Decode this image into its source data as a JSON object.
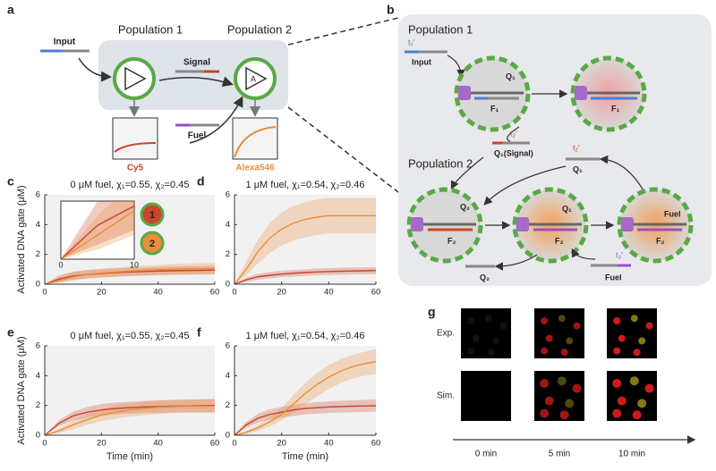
{
  "panel_a": {
    "label": "a",
    "population_1": "Population 1",
    "population_2": "Population 2",
    "input": "Input",
    "signal": "Signal",
    "fuel": "Fuel",
    "amplifier": "A",
    "readout_1": "Cy5",
    "readout_2": "Alexa546"
  },
  "panel_b": {
    "label": "b",
    "population_1": "Population 1",
    "input_toehold": "t₁′",
    "input": "Input",
    "q1_bound": "Q₁",
    "f1_left": "F₁",
    "f1_right": "F₁",
    "signal_toehold": "t₂′",
    "signal": "Q₁(Signal)",
    "population_2": "Population 2",
    "q1_free_toehold": "t₂′",
    "q1_free": "Q₁",
    "q2_bound": "Q₂",
    "f2_left": "F₂",
    "q1_bound_2": "Q₁",
    "f2_mid": "F₂",
    "fuel_bound": "Fuel",
    "f2_right": "F₂",
    "q2_out": "Q₂",
    "fuel_toehold": "t₃′",
    "fuel": "Fuel"
  },
  "panel_g": {
    "label": "g",
    "rows": [
      "Exp.",
      "Sim."
    ],
    "columns": [
      "0 min",
      "5 min",
      "10 min"
    ]
  },
  "chart_data": [
    {
      "type": "line",
      "panel": "c",
      "title": "0 μM fuel, χ₁=0.55, χ₂=0.45",
      "y_label": "Activated DNA gate (μM)",
      "x": [
        0,
        5,
        10,
        15,
        20,
        25,
        30,
        35,
        40,
        45,
        50,
        55,
        60
      ],
      "xlim": [
        0,
        60
      ],
      "ylim": [
        0,
        6
      ],
      "xticks": [
        0,
        20,
        40,
        60
      ],
      "yticks": [
        0,
        2,
        4,
        6
      ],
      "grid": false,
      "series": [
        {
          "color": "#c9452b",
          "values": [
            0,
            0.35,
            0.55,
            0.65,
            0.72,
            0.78,
            0.82,
            0.85,
            0.88,
            0.9,
            0.92,
            0.93,
            0.95
          ],
          "lower": [
            0,
            0.15,
            0.3,
            0.4,
            0.45,
            0.5,
            0.55,
            0.58,
            0.6,
            0.62,
            0.64,
            0.65,
            0.66
          ],
          "upper": [
            0,
            0.6,
            0.85,
            0.95,
            1.0,
            1.05,
            1.1,
            1.12,
            1.15,
            1.18,
            1.2,
            1.22,
            1.24
          ]
        },
        {
          "color": "#e98d3a",
          "values": [
            0,
            0.25,
            0.5,
            0.65,
            0.75,
            0.82,
            0.88,
            0.93,
            0.97,
            1.0,
            1.02,
            1.04,
            1.05
          ],
          "lower": [
            0,
            0.1,
            0.25,
            0.38,
            0.46,
            0.52,
            0.57,
            0.6,
            0.63,
            0.65,
            0.66,
            0.67,
            0.68
          ],
          "upper": [
            0,
            0.45,
            0.8,
            0.95,
            1.05,
            1.12,
            1.2,
            1.26,
            1.3,
            1.35,
            1.38,
            1.4,
            1.42
          ]
        }
      ],
      "inset": {
        "xlim": [
          0,
          10
        ],
        "ylim": [
          0,
          0.6
        ],
        "xticks": [
          0,
          10
        ],
        "markers": [
          "1",
          "2"
        ]
      }
    },
    {
      "type": "line",
      "panel": "d",
      "title": "1 μM fuel, χ₁=0.54, χ₂=0.46",
      "x": [
        0,
        5,
        10,
        15,
        20,
        25,
        30,
        35,
        40,
        45,
        50,
        55,
        60
      ],
      "xlim": [
        0,
        60
      ],
      "ylim": [
        0,
        6
      ],
      "xticks": [
        0,
        20,
        40,
        60
      ],
      "yticks": [
        0,
        2,
        4,
        6
      ],
      "grid": false,
      "series": [
        {
          "color": "#c9452b",
          "values": [
            0,
            0.3,
            0.5,
            0.6,
            0.68,
            0.74,
            0.78,
            0.82,
            0.85,
            0.87,
            0.89,
            0.9,
            0.92
          ],
          "lower": [
            0,
            0.15,
            0.3,
            0.4,
            0.47,
            0.52,
            0.56,
            0.6,
            0.62,
            0.64,
            0.66,
            0.67,
            0.68
          ],
          "upper": [
            0,
            0.45,
            0.7,
            0.82,
            0.9,
            0.96,
            1.0,
            1.04,
            1.07,
            1.1,
            1.12,
            1.13,
            1.15
          ]
        },
        {
          "color": "#e98d3a",
          "values": [
            0,
            1.0,
            2.2,
            3.1,
            3.7,
            4.1,
            4.35,
            4.5,
            4.6,
            4.6,
            4.6,
            4.6,
            4.6
          ],
          "lower": [
            0,
            0.6,
            1.4,
            2.1,
            2.6,
            2.95,
            3.15,
            3.3,
            3.4,
            3.4,
            3.4,
            3.4,
            3.4
          ],
          "upper": [
            0,
            1.5,
            3.0,
            4.1,
            4.8,
            5.25,
            5.5,
            5.7,
            5.8,
            5.8,
            5.8,
            5.8,
            5.8
          ]
        }
      ]
    },
    {
      "type": "line",
      "panel": "e",
      "title": "0 μM fuel, χ₁=0.55, χ₂=0.45",
      "y_label": "Activated DNA gate (μM)",
      "x_label": "Time (min)",
      "x": [
        0,
        5,
        10,
        15,
        20,
        25,
        30,
        35,
        40,
        45,
        50,
        55,
        60
      ],
      "xlim": [
        0,
        60
      ],
      "ylim": [
        0,
        6
      ],
      "xticks": [
        0,
        20,
        40,
        60
      ],
      "yticks": [
        0,
        2,
        4,
        6
      ],
      "grid": false,
      "series": [
        {
          "color": "#c9452b",
          "values": [
            0,
            0.8,
            1.3,
            1.55,
            1.7,
            1.8,
            1.85,
            1.9,
            1.92,
            1.95,
            1.97,
            1.98,
            2.0
          ],
          "lower": [
            0,
            0.6,
            1.0,
            1.2,
            1.3,
            1.4,
            1.45,
            1.5,
            1.5,
            1.52,
            1.55,
            1.55,
            1.55
          ],
          "upper": [
            0,
            1.0,
            1.6,
            1.9,
            2.1,
            2.2,
            2.25,
            2.3,
            2.35,
            2.38,
            2.4,
            2.42,
            2.45
          ]
        },
        {
          "color": "#e98d3a",
          "values": [
            0,
            0.3,
            0.7,
            1.05,
            1.35,
            1.55,
            1.7,
            1.8,
            1.88,
            1.92,
            1.95,
            1.95,
            1.95
          ],
          "lower": [
            0,
            0.15,
            0.4,
            0.7,
            0.95,
            1.1,
            1.25,
            1.35,
            1.42,
            1.47,
            1.5,
            1.5,
            1.5
          ],
          "upper": [
            0,
            0.45,
            1.0,
            1.4,
            1.75,
            2.0,
            2.15,
            2.25,
            2.32,
            2.37,
            2.4,
            2.4,
            2.4
          ]
        }
      ]
    },
    {
      "type": "line",
      "panel": "f",
      "title": "1 μM fuel, χ₁=0.54, χ₂=0.46",
      "x_label": "Time (min)",
      "x": [
        0,
        5,
        10,
        15,
        20,
        25,
        30,
        35,
        40,
        45,
        50,
        55,
        60
      ],
      "xlim": [
        0,
        60
      ],
      "ylim": [
        0,
        6
      ],
      "xticks": [
        0,
        20,
        40,
        60
      ],
      "yticks": [
        0,
        2,
        4,
        6
      ],
      "grid": false,
      "series": [
        {
          "color": "#c9452b",
          "values": [
            0,
            0.7,
            1.15,
            1.4,
            1.55,
            1.7,
            1.8,
            1.85,
            1.9,
            1.92,
            1.95,
            1.97,
            1.98
          ],
          "lower": [
            0,
            0.5,
            0.85,
            1.05,
            1.2,
            1.3,
            1.4,
            1.45,
            1.5,
            1.52,
            1.55,
            1.56,
            1.58
          ],
          "upper": [
            0,
            0.9,
            1.45,
            1.75,
            1.9,
            2.05,
            2.15,
            2.22,
            2.28,
            2.32,
            2.35,
            2.38,
            2.4
          ]
        },
        {
          "color": "#e98d3a",
          "values": [
            0,
            0.2,
            0.5,
            0.9,
            1.4,
            2.1,
            2.8,
            3.4,
            3.9,
            4.3,
            4.6,
            4.8,
            4.95
          ],
          "lower": [
            0,
            0.1,
            0.3,
            0.6,
            1.0,
            1.5,
            2.1,
            2.6,
            3.1,
            3.5,
            3.8,
            4.0,
            4.1
          ],
          "upper": [
            0,
            0.3,
            0.7,
            1.2,
            1.8,
            2.7,
            3.5,
            4.2,
            4.7,
            5.1,
            5.4,
            5.6,
            5.8
          ]
        }
      ]
    }
  ]
}
